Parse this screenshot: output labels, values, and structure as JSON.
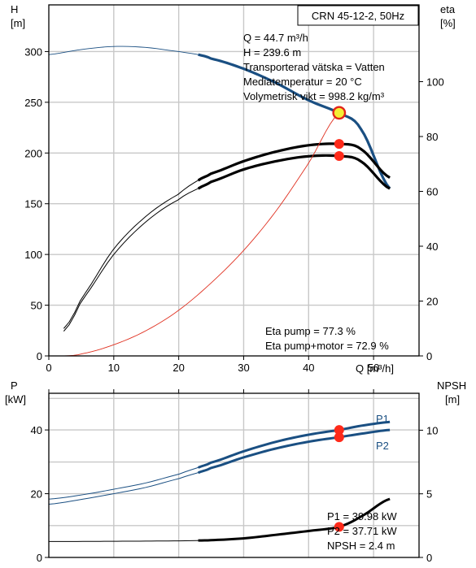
{
  "chart_data": [
    {
      "type": "line",
      "title": "CRN 45-12-2, 50Hz",
      "xlabel": "Q [m³/h]",
      "ylabel_left": [
        "H",
        "[m]"
      ],
      "ylabel_right": [
        "eta",
        "[%]"
      ],
      "xlim": [
        0,
        57
      ],
      "ylim_left": [
        0,
        346
      ],
      "ylim_right": [
        0,
        128
      ],
      "x_ticks": [
        0,
        10,
        20,
        30,
        40,
        50
      ],
      "y_left_ticks": [
        0,
        50,
        100,
        150,
        200,
        250,
        300
      ],
      "y_right_ticks": [
        0,
        20,
        40,
        60,
        80,
        100
      ],
      "grid": true,
      "series": [
        {
          "id": "head-curve",
          "axis": "left",
          "color": "#1a4f82",
          "x_start_thin": 0,
          "x_start_thick": 23,
          "x_end": 52.5,
          "x": [
            0,
            5,
            10,
            15,
            20,
            23,
            25,
            30,
            35,
            40,
            44.7,
            48,
            52.5
          ],
          "y": [
            297,
            302,
            305,
            304,
            300,
            297,
            293,
            283,
            269,
            252,
            239.6,
            224,
            165
          ]
        },
        {
          "id": "eta-motor-curve",
          "axis": "right",
          "color": "#000000",
          "x_start_thin": 2.3,
          "x_start_thick": 23,
          "x_end": 52.5,
          "x": [
            2.3,
            5,
            10,
            15,
            20,
            23,
            25,
            30,
            35,
            40,
            44.7,
            48,
            52.5
          ],
          "y": [
            9,
            20,
            37,
            49,
            57,
            61,
            63.5,
            68,
            71,
            72.8,
            72.9,
            71,
            61
          ]
        },
        {
          "id": "eta-pump-curve",
          "axis": "right",
          "color": "#000000",
          "x_start_thin": 2.3,
          "x_start_thick": 23,
          "x_end": 52.5,
          "x": [
            2.3,
            5,
            10,
            15,
            20,
            23,
            25,
            30,
            35,
            40,
            44.7,
            48,
            52.5
          ],
          "y": [
            10,
            21,
            39,
            51,
            59,
            64,
            66.5,
            71,
            74.5,
            76.8,
            77.3,
            75.5,
            65
          ]
        },
        {
          "id": "system-curve",
          "axis": "left",
          "color": "#e03020",
          "x": [
            2.4,
            5,
            10,
            15,
            20,
            25,
            30,
            35,
            40,
            44.7
          ],
          "y": [
            0,
            2,
            11,
            25,
            45,
            72,
            104,
            143,
            190,
            239.6
          ]
        }
      ],
      "duty_point": {
        "Q": 44.7,
        "H": 239.6
      },
      "markers": [
        {
          "series": "eta-pump-curve",
          "x": 44.7,
          "y": 77.3
        },
        {
          "series": "eta-motor-curve",
          "x": 44.7,
          "y": 72.9
        }
      ],
      "info_lines": [
        "Q = 44.7 m³/h",
        "H = 239.6 m",
        "Transporterad vätska = Vatten",
        "Mediatemperatur = 20 °C",
        "Volymetrisk vikt = 998.2 kg/m³"
      ],
      "eta_lines": [
        "Eta pump = 77.3 %",
        "Eta pump+motor = 72.9 %"
      ]
    },
    {
      "type": "line",
      "title": "",
      "xlabel": "",
      "ylabel_left": [
        "P",
        "[kW]"
      ],
      "ylabel_right": [
        "NPSH",
        "[m]"
      ],
      "xlim": [
        0,
        57
      ],
      "ylim_left": [
        0,
        51.5
      ],
      "ylim_right": [
        0,
        12.9
      ],
      "y_left_ticks": [
        0,
        20,
        40
      ],
      "y_right_ticks": [
        0,
        5,
        10
      ],
      "grid": true,
      "series": [
        {
          "id": "p1-curve",
          "name": "P1",
          "axis": "left",
          "color": "#1a4f82",
          "x_start_thick": 23,
          "x_end": 52.5,
          "x": [
            0,
            5,
            10,
            15,
            20,
            23,
            25,
            30,
            35,
            40,
            44.7,
            48,
            52.5
          ],
          "y": [
            18.3,
            19.6,
            21.4,
            23.4,
            26.1,
            28.2,
            29.8,
            33.3,
            36.3,
            38.5,
            39.98,
            41.3,
            42.5
          ]
        },
        {
          "id": "p2-curve",
          "name": "P2",
          "axis": "left",
          "color": "#1a4f82",
          "x_start_thick": 23,
          "x_end": 52.5,
          "x": [
            0,
            5,
            10,
            15,
            20,
            23,
            25,
            30,
            35,
            40,
            44.7,
            48,
            52.5
          ],
          "y": [
            16.7,
            18.2,
            20.0,
            22.0,
            24.7,
            26.6,
            28.1,
            31.4,
            34.2,
            36.3,
            37.71,
            38.8,
            40.0
          ]
        },
        {
          "id": "npsh-curve",
          "axis": "right",
          "color": "#000000",
          "x_start_thick": 23,
          "x_end": 52.5,
          "x": [
            0,
            10,
            20,
            23,
            25,
            30,
            35,
            40,
            44.7,
            48,
            52.5
          ],
          "y": [
            1.25,
            1.27,
            1.3,
            1.33,
            1.36,
            1.5,
            1.78,
            2.08,
            2.4,
            3.2,
            4.6
          ]
        }
      ],
      "markers": [
        {
          "series": "p1-curve",
          "x": 44.7,
          "y": 39.98
        },
        {
          "series": "p2-curve",
          "x": 44.7,
          "y": 37.71
        },
        {
          "series": "npsh-curve",
          "x": 44.7,
          "y": 2.4
        }
      ],
      "info_lines": [
        "P1 = 39.98 kW",
        "P2 = 37.71 kW",
        "NPSH = 2.4 m"
      ]
    }
  ]
}
